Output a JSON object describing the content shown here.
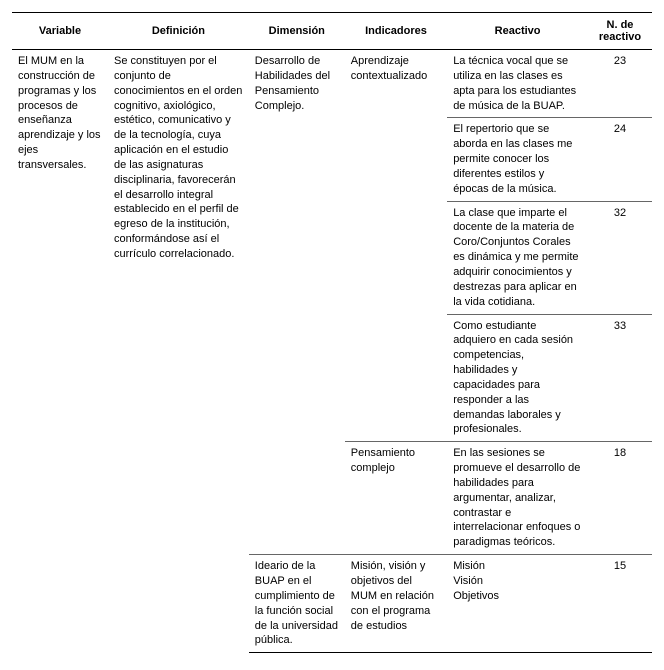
{
  "columns": [
    "Variable",
    "Definición",
    "Dimensión",
    "Indicadores",
    "Reactivo",
    "N. de reactivo"
  ],
  "variable": "El MUM en la construcción de programas y los procesos de enseñanza aprendizaje y los ejes transversales.",
  "definicion": "Se constituyen por el conjunto de conocimientos en el orden cognitivo, axiológico, estético, comunicativo y de la tecnología, cuya aplicación en el estudio de las asignaturas disciplinaria, favorecerán el desarrollo integral establecido en el perfil de egreso de la institución, conformándose así el currículo correlacionado.",
  "rows": [
    {
      "dimension": "Desarrollo de Habilidades del Pensamiento Complejo.",
      "indicador": "Aprendizaje contextualizado",
      "reactivo": "La técnica vocal que se utiliza en las clases es apta para los estudiantes de música de la BUAP.",
      "n": "23"
    },
    {
      "dimension": "",
      "indicador": "",
      "reactivo": "El repertorio que se aborda en las clases me permite conocer los diferentes estilos y épocas de la música.",
      "n": "24"
    },
    {
      "dimension": "",
      "indicador": "",
      "reactivo": "La clase que imparte el docente de la materia de Coro/Conjuntos Corales es dinámica y me permite adquirir conocimientos y destrezas para aplicar en la vida cotidiana.",
      "n": "32"
    },
    {
      "dimension": "",
      "indicador": "",
      "reactivo": "Como estudiante adquiero en cada sesión competencias, habilidades y capacidades para responder a las demandas laborales y profesionales.",
      "n": "33"
    },
    {
      "dimension": "",
      "indicador": "Pensamiento complejo",
      "reactivo": "En las sesiones se promueve el desarrollo de habilidades para argumentar, analizar, contrastar e interrelacionar enfoques o paradigmas teóricos.",
      "n": "18"
    },
    {
      "dimension": "Ideario de la BUAP en el cumplimiento de la función social de la universidad pública.",
      "indicador": "Misión, visión y objetivos del MUM en relación con el programa de estudios",
      "reactivo": "Misión\nVisión\nObjetivos",
      "n": "15"
    }
  ]
}
